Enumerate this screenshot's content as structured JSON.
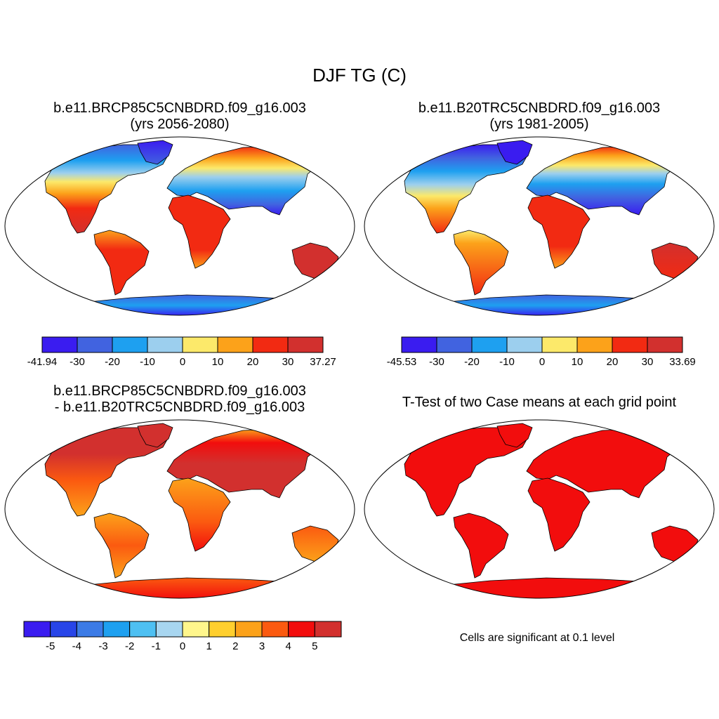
{
  "main_title": "DJF TG (C)",
  "panels": [
    {
      "title_line1": "b.e11.BRCP85C5CNBDRD.f09_g16.003",
      "title_line2": "(yrs 2056-2080)",
      "palette": "abs"
    },
    {
      "title_line1": "b.e11.B20TRC5CNBDRD.f09_g16.003",
      "title_line2": "(yrs 1981-2005)",
      "palette": "abs2"
    },
    {
      "title_line1": "b.e11.BRCP85C5CNBDRD.f09_g16.003",
      "title_line2": "- b.e11.B20TRC5CNBDRD.f09_g16.003",
      "palette": "diff"
    },
    {
      "title_line1": "T-Test of two Case means at each grid point",
      "title_line2": "",
      "palette": "ttest"
    }
  ],
  "colorbars": [
    {
      "name": "colorbar-panel-1",
      "colors": [
        "#3a1cf0",
        "#4163e0",
        "#1ea0f0",
        "#9ccfee",
        "#fce96a",
        "#fca21a",
        "#f22a12",
        "#d2302e"
      ],
      "labels": [
        "-41.94",
        "-30",
        "-20",
        "-10",
        "0",
        "10",
        "20",
        "30",
        "37.27"
      ]
    },
    {
      "name": "colorbar-panel-2",
      "colors": [
        "#3a1cf0",
        "#4163e0",
        "#1ea0f0",
        "#9ccfee",
        "#fce96a",
        "#fca21a",
        "#f22a12",
        "#d2302e"
      ],
      "labels": [
        "-45.53",
        "-30",
        "-20",
        "-10",
        "0",
        "10",
        "20",
        "30",
        "33.69"
      ]
    },
    {
      "name": "colorbar-panel-3",
      "colors": [
        "#3a1cf0",
        "#2845e8",
        "#3c7be6",
        "#1ea0f0",
        "#4ec0f2",
        "#a8d6f0",
        "#fff68c",
        "#ffcf2e",
        "#fca21a",
        "#fb5a10",
        "#f20d0d",
        "#d2302e"
      ],
      "labels": [
        "-5",
        "-4",
        "-3",
        "-2",
        "-1",
        "0",
        "1",
        "2",
        "3",
        "4",
        "5"
      ],
      "label_mode": "inner"
    }
  ],
  "significance_note": "Cells are significant at 0.1 level",
  "chart_data": [
    {
      "type": "heatmap",
      "title": "b.e11.BRCP85C5CNBDRD.f09_g16.003 (yrs 2056-2080)",
      "variable": "DJF TG (C)",
      "levels": [
        -41.94,
        -30,
        -20,
        -10,
        0,
        10,
        20,
        30,
        37.27
      ],
      "projection": "Robinson"
    },
    {
      "type": "heatmap",
      "title": "b.e11.B20TRC5CNBDRD.f09_g16.003 (yrs 1981-2005)",
      "variable": "DJF TG (C)",
      "levels": [
        -45.53,
        -30,
        -20,
        -10,
        0,
        10,
        20,
        30,
        33.69
      ],
      "projection": "Robinson"
    },
    {
      "type": "heatmap",
      "title": "b.e11.BRCP85C5CNBDRD.f09_g16.003 - b.e11.B20TRC5CNBDRD.f09_g16.003",
      "variable": "DJF TG (C) difference",
      "levels": [
        -5,
        -4,
        -3,
        -2,
        -1,
        0,
        1,
        2,
        3,
        4,
        5
      ],
      "projection": "Robinson"
    },
    {
      "type": "heatmap",
      "title": "T-Test of two Case means at each grid point",
      "note": "Cells are significant at 0.1 level",
      "projection": "Robinson"
    }
  ]
}
